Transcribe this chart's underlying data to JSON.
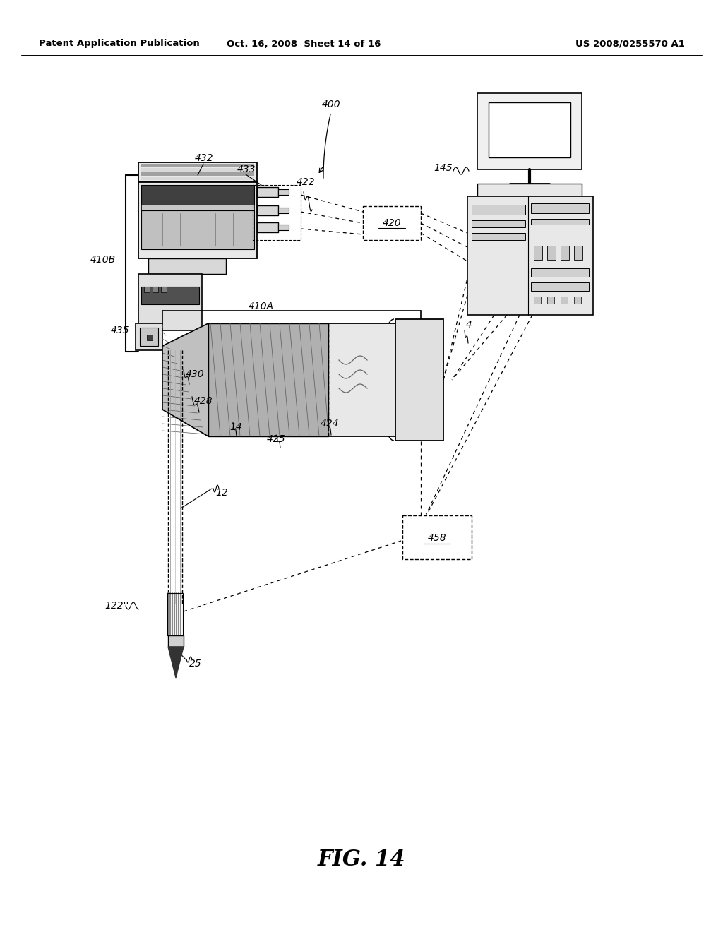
{
  "header_left": "Patent Application Publication",
  "header_mid": "Oct. 16, 2008  Sheet 14 of 16",
  "header_right": "US 2008/0255570 A1",
  "figure_label": "FIG. 14",
  "bg_color": "#ffffff",
  "gray_light": "#e0e0e0",
  "gray_mid": "#b0b0b0",
  "gray_dark": "#707070",
  "hatch_color": "#888888"
}
